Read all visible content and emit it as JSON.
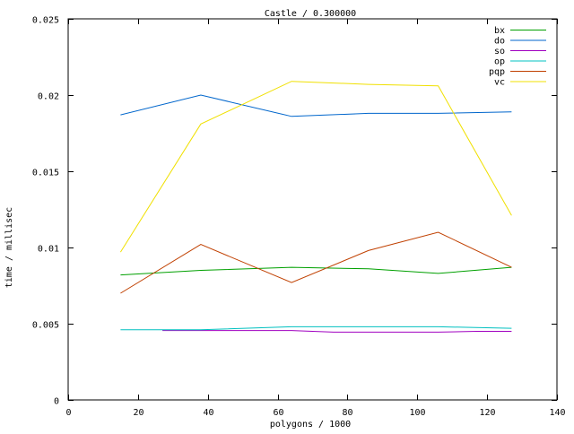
{
  "chart_data": {
    "type": "line",
    "title": "Castle / 0.300000",
    "xlabel": "polygons / 1000",
    "ylabel": "time / millisec",
    "xlim": [
      0,
      140
    ],
    "ylim": [
      0,
      0.025
    ],
    "xticks": [
      0,
      20,
      40,
      60,
      80,
      100,
      120,
      140
    ],
    "yticks": [
      0,
      0.005,
      0.01,
      0.015,
      0.02,
      0.025
    ],
    "xtick_labels": [
      "0",
      "20",
      "40",
      "60",
      "80",
      "100",
      "120",
      "140"
    ],
    "ytick_labels": [
      "0",
      "0.005",
      "0.01",
      "0.015",
      "0.02",
      "0.025"
    ],
    "grid": false,
    "legend_position": "top-right",
    "series": [
      {
        "name": "bx",
        "color": "#00a000",
        "x": [
          15,
          38,
          64,
          86,
          106,
          127
        ],
        "y": [
          0.0082,
          0.0085,
          0.0087,
          0.0086,
          0.0083,
          0.0087
        ]
      },
      {
        "name": "do",
        "color": "#0066cc",
        "x": [
          15,
          38,
          64,
          86,
          106,
          127
        ],
        "y": [
          0.0187,
          0.02,
          0.0186,
          0.0188,
          0.0188,
          0.0189
        ]
      },
      {
        "name": "so",
        "color": "#a000c0",
        "x": [
          27,
          38,
          64,
          76,
          86,
          106,
          117,
          127
        ],
        "y": [
          0.00455,
          0.00455,
          0.00455,
          0.00445,
          0.00445,
          0.00445,
          0.0045,
          0.0045
        ]
      },
      {
        "name": "op",
        "color": "#00c0c0",
        "x": [
          15,
          38,
          64,
          86,
          106,
          127
        ],
        "y": [
          0.0046,
          0.0046,
          0.0048,
          0.0048,
          0.0048,
          0.0047
        ]
      },
      {
        "name": "pqp",
        "color": "#c04000",
        "x": [
          15,
          38,
          64,
          86,
          106,
          127
        ],
        "y": [
          0.007,
          0.0102,
          0.0077,
          0.0098,
          0.011,
          0.0087
        ]
      },
      {
        "name": "vc",
        "color": "#f0e000",
        "x": [
          15,
          38,
          64,
          86,
          106,
          127
        ],
        "y": [
          0.0097,
          0.0181,
          0.0209,
          0.0207,
          0.0206,
          0.0121
        ]
      }
    ]
  }
}
